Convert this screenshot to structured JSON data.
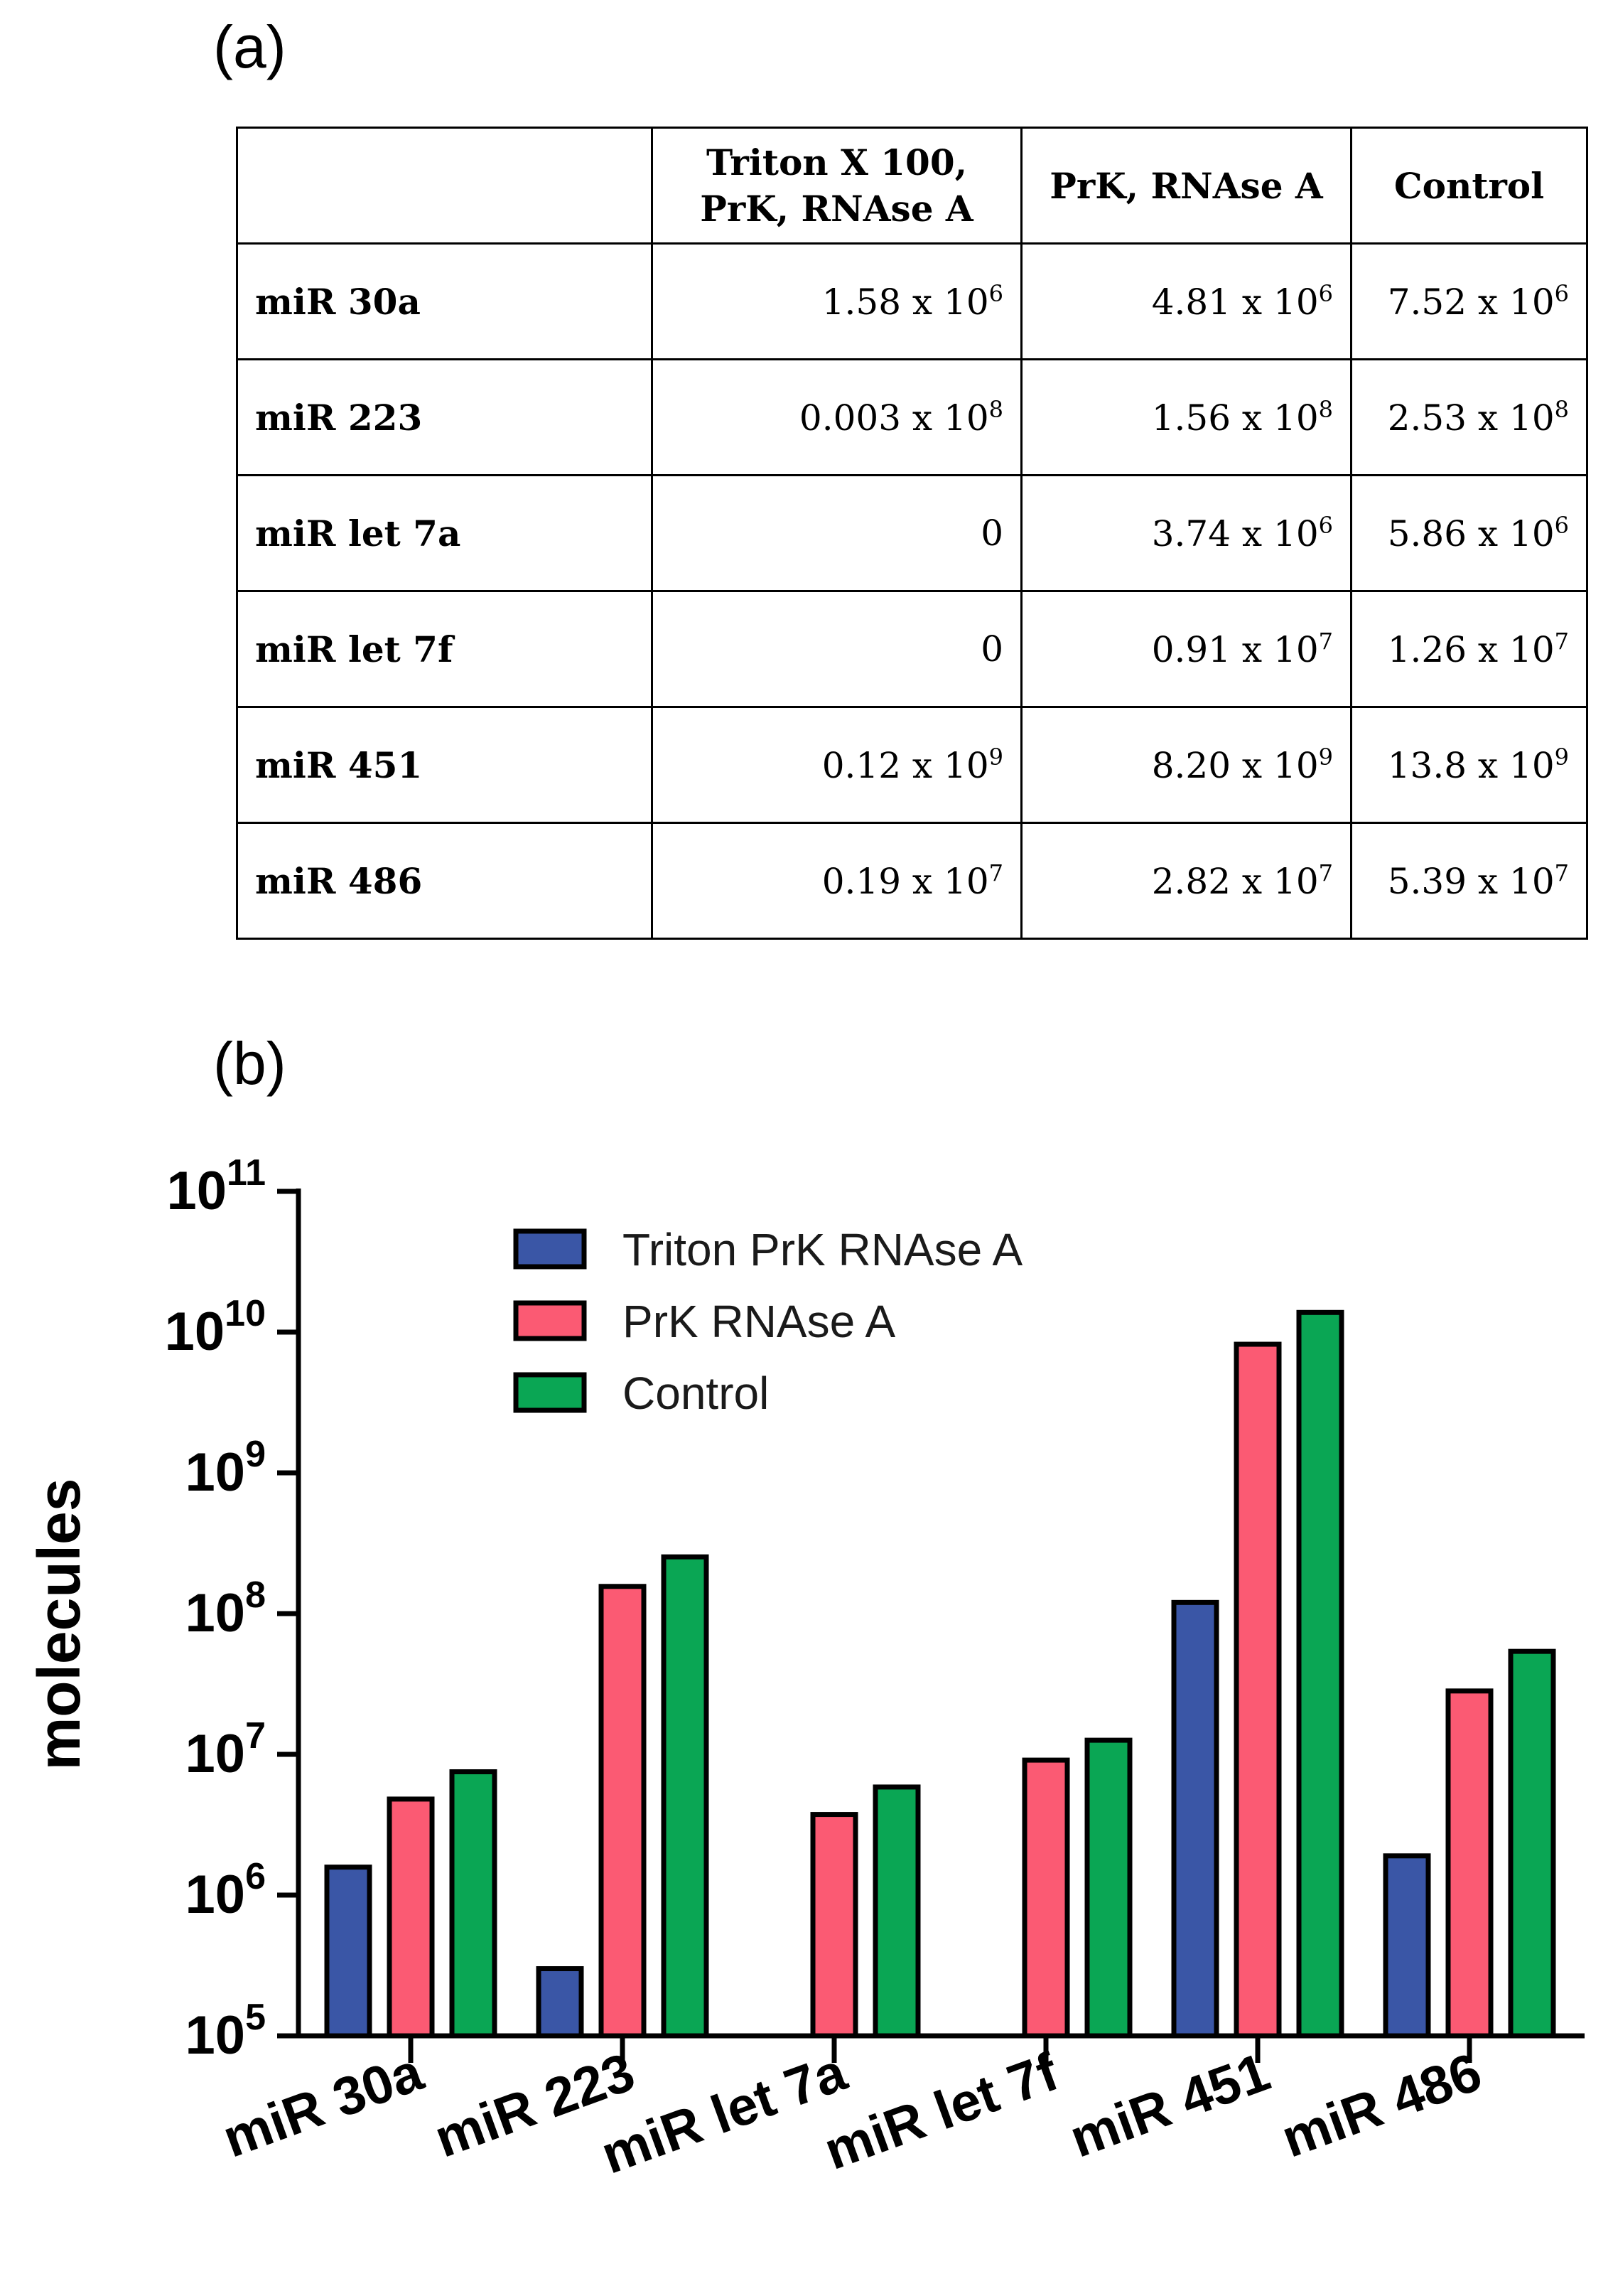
{
  "panel_a_label": "(a)",
  "panel_b_label": "(b)",
  "table": {
    "headers": [
      "",
      "Triton X 100, PrK, RNAse A",
      "PrK, RNAse A",
      "Control"
    ],
    "rows": [
      {
        "name": "miR 30a",
        "cells": [
          {
            "m": "1.58 x 10",
            "e": "6"
          },
          {
            "m": "4.81 x 10",
            "e": "6"
          },
          {
            "m": "7.52 x 10",
            "e": "6"
          }
        ]
      },
      {
        "name": "miR 223",
        "cells": [
          {
            "m": "0.003 x 10",
            "e": "8"
          },
          {
            "m": "1.56 x 10",
            "e": "8"
          },
          {
            "m": "2.53 x 10",
            "e": "8"
          }
        ]
      },
      {
        "name": "miR let 7a",
        "cells": [
          {
            "m": "0",
            "e": ""
          },
          {
            "m": "3.74 x 10",
            "e": "6"
          },
          {
            "m": "5.86 x 10",
            "e": "6"
          }
        ]
      },
      {
        "name": "miR let 7f",
        "cells": [
          {
            "m": "0",
            "e": ""
          },
          {
            "m": "0.91 x 10",
            "e": "7"
          },
          {
            "m": "1.26 x 10",
            "e": "7"
          }
        ]
      },
      {
        "name": "miR 451",
        "cells": [
          {
            "m": "0.12 x 10",
            "e": "9"
          },
          {
            "m": "8.20 x 10",
            "e": "9"
          },
          {
            "m": "13.8 x 10",
            "e": "9"
          }
        ]
      },
      {
        "name": "miR 486",
        "cells": [
          {
            "m": "0.19 x 10",
            "e": "7"
          },
          {
            "m": "2.82 x 10",
            "e": "7"
          },
          {
            "m": "5.39 x 10",
            "e": "7"
          }
        ]
      }
    ]
  },
  "chart_data": {
    "type": "bar",
    "title": "",
    "xlabel": "",
    "ylabel": "molecules",
    "yscale": "log",
    "ylim": [
      100000,
      100000000000
    ],
    "y_ticks": [
      {
        "base": "10",
        "exp": "5"
      },
      {
        "base": "10",
        "exp": "6"
      },
      {
        "base": "10",
        "exp": "7"
      },
      {
        "base": "10",
        "exp": "8"
      },
      {
        "base": "10",
        "exp": "9"
      },
      {
        "base": "10",
        "exp": "10"
      },
      {
        "base": "10",
        "exp": "11"
      }
    ],
    "categories": [
      "miR 30a",
      "miR 223",
      "miR let 7a",
      "miR let 7f",
      "miR 451",
      "miR 486"
    ],
    "legend_position": "top-center",
    "series": [
      {
        "name": "Triton PrK RNAse A",
        "color": "#3a56a6",
        "values": [
          1580000,
          300000,
          0,
          0,
          120000000,
          1900000
        ]
      },
      {
        "name": "PrK RNAse A",
        "color": "#fb5a73",
        "values": [
          4810000,
          156000000,
          3740000,
          9100000,
          8200000000,
          28200000
        ]
      },
      {
        "name": "Control",
        "color": "#0aa654",
        "values": [
          7520000,
          253000000,
          5860000,
          12600000,
          13800000000,
          53900000
        ]
      }
    ]
  }
}
